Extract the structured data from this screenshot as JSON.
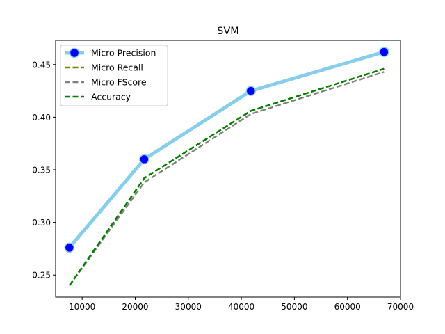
{
  "chart_data": {
    "type": "line",
    "title": "SVM",
    "xlabel": "",
    "ylabel": "",
    "xlim": [
      5000,
      70000
    ],
    "ylim": [
      0.229,
      0.473
    ],
    "xticks": [
      10000,
      20000,
      30000,
      40000,
      50000,
      60000,
      70000
    ],
    "yticks": [
      0.25,
      0.3,
      0.35,
      0.4,
      0.45
    ],
    "grid": false,
    "legend_position": "upper-left",
    "x": [
      7600,
      21700,
      41800,
      66900
    ],
    "series": [
      {
        "name": "Micro Precision",
        "values": [
          0.276,
          0.36,
          0.425,
          0.462
        ],
        "line_color": "#87ceeb",
        "marker_color": "#0000ff",
        "style": "solid-marker"
      },
      {
        "name": "Micro Recall",
        "values": [
          0.24,
          0.342,
          0.406,
          0.446
        ],
        "line_color": "#808000",
        "style": "dashed"
      },
      {
        "name": "Micro FScore",
        "values": [
          0.24,
          0.338,
          0.403,
          0.443
        ],
        "line_color": "#808080",
        "style": "dashed"
      },
      {
        "name": "Accuracy",
        "values": [
          0.24,
          0.342,
          0.406,
          0.446
        ],
        "line_color": "#008000",
        "style": "dashed"
      }
    ]
  }
}
